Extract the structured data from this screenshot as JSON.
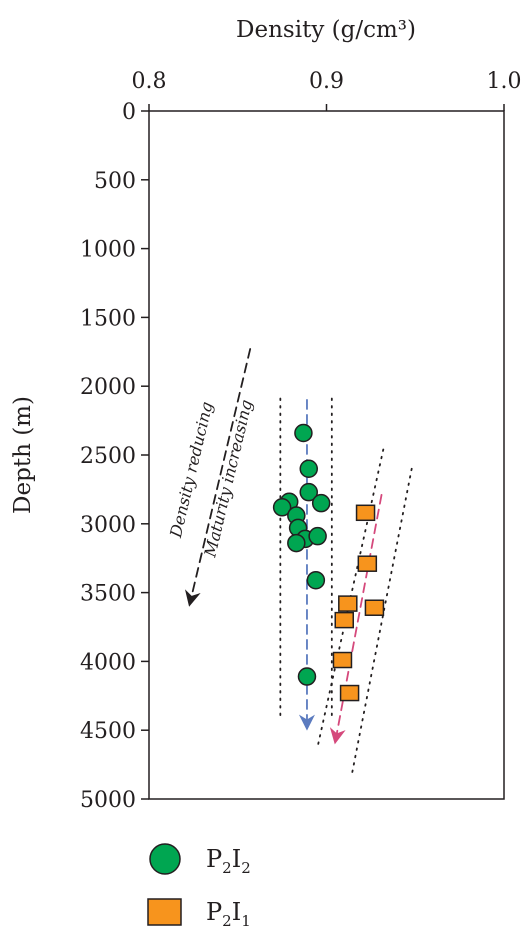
{
  "chart_data": {
    "type": "scatter",
    "xlabel": "Density (g/cm³)",
    "ylabel": "Depth (m)",
    "xlim": [
      0.8,
      1.0
    ],
    "ylim": [
      0,
      5000
    ],
    "y_inverted": true,
    "x_axis_position": "top",
    "x_ticks": [
      "0.8",
      "0.9",
      "1.0"
    ],
    "y_ticks": [
      "0",
      "500",
      "1000",
      "1500",
      "2000",
      "2500",
      "3000",
      "3500",
      "4000",
      "4500",
      "5000"
    ],
    "annotations": [
      "Maturity increasing",
      "Density reducing"
    ],
    "legend_position": "bottom-left",
    "series": [
      {
        "name": "P2I2",
        "marker": "circle",
        "color": "#00a651",
        "points": [
          {
            "x": 0.887,
            "y": 2340
          },
          {
            "x": 0.89,
            "y": 2600
          },
          {
            "x": 0.89,
            "y": 2770
          },
          {
            "x": 0.897,
            "y": 2850
          },
          {
            "x": 0.879,
            "y": 2840
          },
          {
            "x": 0.875,
            "y": 2880
          },
          {
            "x": 0.883,
            "y": 2940
          },
          {
            "x": 0.884,
            "y": 3030
          },
          {
            "x": 0.888,
            "y": 3110
          },
          {
            "x": 0.883,
            "y": 3140
          },
          {
            "x": 0.895,
            "y": 3090
          },
          {
            "x": 0.894,
            "y": 3410
          },
          {
            "x": 0.889,
            "y": 4110
          }
        ]
      },
      {
        "name": "P2I1",
        "marker": "square",
        "color": "#f7941d",
        "points": [
          {
            "x": 0.922,
            "y": 2920
          },
          {
            "x": 0.923,
            "y": 3290
          },
          {
            "x": 0.912,
            "y": 3580
          },
          {
            "x": 0.927,
            "y": 3610
          },
          {
            "x": 0.91,
            "y": 3700
          },
          {
            "x": 0.909,
            "y": 3990
          },
          {
            "x": 0.913,
            "y": 4230
          }
        ]
      }
    ],
    "trend_lines": [
      {
        "style": "dashed",
        "color": "#5b7bbf",
        "from": {
          "x": 0.889,
          "y": 2100
        },
        "to": {
          "x": 0.889,
          "y": 4480
        }
      },
      {
        "style": "dashed",
        "color": "#d5497c",
        "from": {
          "x": 0.931,
          "y": 2790
        },
        "to": {
          "x": 0.905,
          "y": 4580
        }
      },
      {
        "style": "dashed",
        "color": "#231f20",
        "from": {
          "x": 0.857,
          "y": 1730
        },
        "to": {
          "x": 0.823,
          "y": 3580
        }
      },
      {
        "style": "dotted",
        "color": "#231f20",
        "from": {
          "x": 0.874,
          "y": 2090
        },
        "to": {
          "x": 0.874,
          "y": 4400
        }
      },
      {
        "style": "dotted",
        "color": "#231f20",
        "from": {
          "x": 0.903,
          "y": 2090
        },
        "to": {
          "x": 0.903,
          "y": 4400
        }
      },
      {
        "style": "dotted",
        "color": "#231f20",
        "from": {
          "x": 0.932,
          "y": 2460
        },
        "to": {
          "x": 0.895,
          "y": 4620
        }
      },
      {
        "style": "dotted",
        "color": "#231f20",
        "from": {
          "x": 0.948,
          "y": 2600
        },
        "to": {
          "x": 0.914,
          "y": 4840
        }
      }
    ]
  },
  "legend": {
    "items": [
      {
        "marker": "circle",
        "color": "#00a651",
        "base1": "P",
        "sub1": "2",
        "base2": "I",
        "sub2": "2"
      },
      {
        "marker": "square",
        "color": "#f7941d",
        "base1": "P",
        "sub1": "2",
        "base2": "I",
        "sub2": "1"
      }
    ]
  }
}
